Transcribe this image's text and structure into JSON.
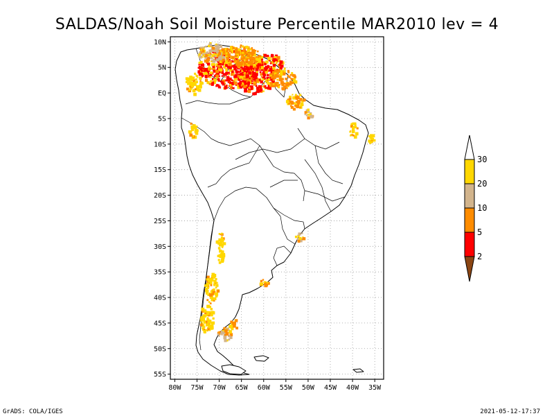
{
  "title": "SALDAS/Noah Soil Moisture Percentile MAR2010 lev = 4",
  "footer": {
    "left": "GrADS: COLA/IGES",
    "right": "2021-05-12-17:37"
  },
  "map": {
    "lon_range": [
      -81,
      -33
    ],
    "lat_range": [
      -56,
      11
    ],
    "y_ticks": [
      {
        "lat": 10,
        "label": "10N"
      },
      {
        "lat": 5,
        "label": "5N"
      },
      {
        "lat": 0,
        "label": "EQ"
      },
      {
        "lat": -5,
        "label": "5S"
      },
      {
        "lat": -10,
        "label": "10S"
      },
      {
        "lat": -15,
        "label": "15S"
      },
      {
        "lat": -20,
        "label": "20S"
      },
      {
        "lat": -25,
        "label": "25S"
      },
      {
        "lat": -30,
        "label": "30S"
      },
      {
        "lat": -35,
        "label": "35S"
      },
      {
        "lat": -40,
        "label": "40S"
      },
      {
        "lat": -45,
        "label": "45S"
      },
      {
        "lat": -50,
        "label": "50S"
      },
      {
        "lat": -55,
        "label": "55S"
      }
    ],
    "x_ticks": [
      {
        "lon": -80,
        "label": "80W"
      },
      {
        "lon": -75,
        "label": "75W"
      },
      {
        "lon": -70,
        "label": "70W"
      },
      {
        "lon": -65,
        "label": "65W"
      },
      {
        "lon": -60,
        "label": "60W"
      },
      {
        "lon": -55,
        "label": "55W"
      },
      {
        "lon": -50,
        "label": "50W"
      },
      {
        "lon": -45,
        "label": "45W"
      },
      {
        "lon": -40,
        "label": "40W"
      },
      {
        "lon": -35,
        "label": "35W"
      }
    ],
    "grid": true
  },
  "colorbar": {
    "levels": [
      {
        "label": "2",
        "color": "#8b4513"
      },
      {
        "label": "5",
        "color": "#ff0000"
      },
      {
        "label": "10",
        "color": "#ff8c00"
      },
      {
        "label": "20",
        "color": "#d2b48c"
      },
      {
        "label": "30",
        "color": "#ffd700"
      }
    ],
    "top_color": "#ffffff",
    "bottom_color": "#8b4513"
  },
  "colors": {
    "below_2": "#8b4513",
    "p2_5": "#ff0000",
    "p5_10": "#ff8c00",
    "p10_20": "#d2b48c",
    "p20_30": "#ffd700"
  },
  "anomaly_regions": [
    {
      "lon": -68,
      "lat": 5,
      "rx": 7,
      "ry": 4,
      "category": "p2_5"
    },
    {
      "lon": -62,
      "lat": 3,
      "rx": 4,
      "ry": 3,
      "category": "p2_5"
    },
    {
      "lon": -59,
      "lat": 6,
      "rx": 3,
      "ry": 2,
      "category": "p2_5"
    },
    {
      "lon": -66,
      "lat": 7.5,
      "rx": 5,
      "ry": 2,
      "category": "p5_10"
    },
    {
      "lon": -72,
      "lat": 8,
      "rx": 3,
      "ry": 2,
      "category": "p10_20"
    },
    {
      "lon": -56,
      "lat": 3,
      "rx": 3,
      "ry": 2,
      "category": "p5_10"
    },
    {
      "lon": -53,
      "lat": -1.5,
      "rx": 2,
      "ry": 1.5,
      "category": "p5_10"
    },
    {
      "lon": -76,
      "lat": 2,
      "rx": 2,
      "ry": 2,
      "category": "p20_30"
    },
    {
      "lon": -76,
      "lat": -7,
      "rx": 1,
      "ry": 1.5,
      "category": "p20_30"
    },
    {
      "lon": -52,
      "lat": -28,
      "rx": 1.2,
      "ry": 0.8,
      "category": "p10_20"
    },
    {
      "lon": -70,
      "lat": -30,
      "rx": 1,
      "ry": 3,
      "category": "p20_30"
    },
    {
      "lon": -72,
      "lat": -38,
      "rx": 1.5,
      "ry": 3,
      "category": "p20_30"
    },
    {
      "lon": -60,
      "lat": -37,
      "rx": 1,
      "ry": 0.8,
      "category": "p5_10"
    },
    {
      "lon": -73,
      "lat": -44,
      "rx": 1.5,
      "ry": 3,
      "category": "p20_30"
    },
    {
      "lon": -69,
      "lat": -47,
      "rx": 1.5,
      "ry": 1.5,
      "category": "p10_20"
    },
    {
      "lon": -67,
      "lat": -45,
      "rx": 1,
      "ry": 1,
      "category": "p5_10"
    },
    {
      "lon": -40,
      "lat": -7,
      "rx": 1,
      "ry": 1.5,
      "category": "p20_30"
    },
    {
      "lon": -36,
      "lat": -9,
      "rx": 0.7,
      "ry": 1.2,
      "category": "p20_30"
    },
    {
      "lon": -50,
      "lat": -4,
      "rx": 1,
      "ry": 1,
      "category": "p10_20"
    }
  ]
}
